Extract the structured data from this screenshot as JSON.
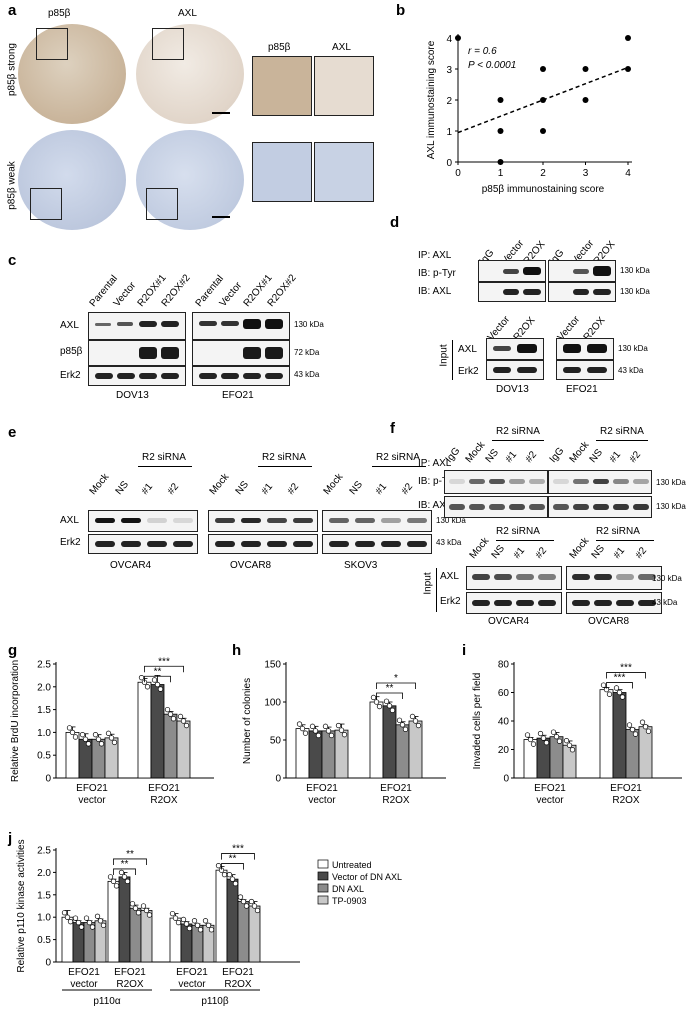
{
  "panels": {
    "a": {
      "letter": "a",
      "col_labels": [
        "p85β",
        "AXL"
      ],
      "inset_labels": [
        "p85β",
        "AXL"
      ],
      "row_labels": [
        "p85β strong",
        "p85β weak"
      ]
    },
    "b": {
      "letter": "b",
      "stats_r": "r = 0.6",
      "stats_p": "P < 0.0001"
    },
    "c": {
      "letter": "c",
      "lanes_left": [
        "Parental",
        "Vector",
        "R2OX#1",
        "R2OX#2"
      ],
      "lanes_right": [
        "Parental",
        "Vector",
        "R2OX#1",
        "R2OX#2"
      ],
      "rows": [
        "AXL",
        "p85β",
        "Erk2"
      ],
      "kda": [
        "130 kDa",
        "72 kDa",
        "43 kDa"
      ],
      "cell_lines": [
        "DOV13",
        "EFO21"
      ]
    },
    "d": {
      "letter": "d",
      "lanes_top": [
        "IgG",
        "Vector",
        "R2OX",
        "IgG",
        "Vector",
        "R2OX"
      ],
      "ip_label": "IP: AXL",
      "ib_labels": [
        "IB: p-Tyr",
        "IB: AXL"
      ],
      "kda_top": [
        "130 kDa",
        "130 kDa"
      ],
      "lanes_input": [
        "Vector",
        "R2OX",
        "Vector",
        "R2OX"
      ],
      "input_label": "Input",
      "input_rows": [
        "AXL",
        "Erk2"
      ],
      "kda_input": [
        "130 kDa",
        "43 kDa"
      ],
      "cell_lines": [
        "DOV13",
        "EFO21"
      ]
    },
    "e": {
      "letter": "e",
      "siRNA_label": "R2 siRNA",
      "lanes": [
        "Mock",
        "NS",
        "#1",
        "#2"
      ],
      "rows": [
        "AXL",
        "Erk2"
      ],
      "kda": [
        "130 kDa",
        "43 kDa"
      ],
      "cell_lines": [
        "OVCAR4",
        "OVCAR8",
        "SKOV3"
      ]
    },
    "f": {
      "letter": "f",
      "siRNA_label": "R2 siRNA",
      "lanes_top": [
        "IgG",
        "Mock",
        "NS",
        "#1",
        "#2"
      ],
      "ip_label": "IP: AXL",
      "ib_labels": [
        "IB: p-Tyr",
        "IB: AXL"
      ],
      "kda_top": [
        "130 kDa",
        "130 kDa"
      ],
      "lanes_input": [
        "Mock",
        "NS",
        "#1",
        "#2"
      ],
      "input_label": "Input",
      "input_rows": [
        "AXL",
        "Erk2"
      ],
      "kda_input": [
        "130 kDa",
        "43 kDa"
      ],
      "cell_lines": [
        "OVCAR4",
        "OVCAR8"
      ]
    },
    "g": {
      "letter": "g"
    },
    "h": {
      "letter": "h"
    },
    "i": {
      "letter": "i"
    },
    "j": {
      "letter": "j"
    }
  },
  "colors": {
    "untreated": "#ffffff",
    "vector_dn_axl": "#4a4a4a",
    "dn_axl": "#8c8c8c",
    "tp0903": "#c8c8c8",
    "stain_brown": "#c9b49a",
    "stain_blue": "#bcc7dd"
  },
  "chart_data": [
    {
      "id": "b",
      "type": "scatter",
      "xlabel": "p85β immunostaining score",
      "ylabel": "AXL immunostaining score",
      "xlim": [
        0,
        4
      ],
      "ylim": [
        0,
        4
      ],
      "xticks": [
        0,
        1,
        2,
        3,
        4
      ],
      "yticks": [
        0,
        1,
        2,
        3,
        4
      ],
      "points": [
        [
          0,
          4
        ],
        [
          1,
          2
        ],
        [
          1,
          1
        ],
        [
          1,
          0
        ],
        [
          2,
          3
        ],
        [
          2,
          2
        ],
        [
          2,
          1
        ],
        [
          3,
          3
        ],
        [
          3,
          2
        ],
        [
          4,
          4
        ],
        [
          4,
          3
        ]
      ],
      "trendline": [
        [
          0,
          0.95
        ],
        [
          4,
          3.05
        ]
      ],
      "grid": false
    },
    {
      "id": "g",
      "type": "bar",
      "ylabel": "Relative BrdU incorporation",
      "ylim": [
        0,
        2.5
      ],
      "yticks": [
        "0",
        "0.5",
        "1.0",
        "1.5",
        "2.0",
        "2.5"
      ],
      "groups": [
        [
          "EFO21",
          "vector"
        ],
        [
          "EFO21",
          "R2OX"
        ]
      ],
      "values": [
        [
          1.0,
          0.85,
          0.85,
          0.88
        ],
        [
          2.1,
          2.05,
          1.4,
          1.25
        ]
      ],
      "errors": [
        [
          0.12,
          0.12,
          0.1,
          0.08
        ],
        [
          0.08,
          0.2,
          0.06,
          0.06
        ]
      ],
      "significance": [
        "***",
        "**"
      ]
    },
    {
      "id": "h",
      "type": "bar",
      "ylabel": "Number of colonies",
      "ylim": [
        0,
        150
      ],
      "yticks": [
        "0",
        "50",
        "100",
        "150"
      ],
      "groups": [
        [
          "EFO21",
          "vector"
        ],
        [
          "EFO21",
          "R2OX"
        ]
      ],
      "values": [
        [
          65,
          62,
          62,
          63
        ],
        [
          100,
          95,
          70,
          75
        ]
      ],
      "errors": [
        [
          5,
          6,
          5,
          8
        ],
        [
          7,
          5,
          4,
          6
        ]
      ],
      "significance": [
        "*",
        "**"
      ]
    },
    {
      "id": "i",
      "type": "bar",
      "ylabel": "Invaded cells per field",
      "ylim": [
        0,
        80
      ],
      "yticks": [
        "0",
        "20",
        "40",
        "60",
        "80"
      ],
      "groups": [
        [
          "EFO21",
          "vector"
        ],
        [
          "EFO21",
          "R2OX"
        ]
      ],
      "values": [
        [
          27,
          28,
          29,
          23
        ],
        [
          62,
          60,
          34,
          36
        ]
      ],
      "errors": [
        [
          1.5,
          2,
          3,
          3
        ],
        [
          1.5,
          2,
          1,
          1
        ]
      ],
      "significance": [
        "***",
        "***"
      ]
    },
    {
      "id": "j",
      "type": "bar",
      "ylabel": "Relative p110 kinase activities",
      "ylim": [
        0,
        2.5
      ],
      "yticks": [
        "0",
        "0.5",
        "1.0",
        "1.5",
        "2.0",
        "2.5"
      ],
      "groups": [
        [
          "EFO21",
          "vector"
        ],
        [
          "EFO21",
          "R2OX"
        ],
        [
          "EFO21",
          "vector"
        ],
        [
          "EFO21",
          "R2OX"
        ]
      ],
      "subgroups": [
        "p110α",
        "p110β"
      ],
      "values": [
        [
          1.0,
          0.88,
          0.88,
          0.92
        ],
        [
          1.8,
          1.9,
          1.2,
          1.15
        ],
        [
          0.98,
          0.85,
          0.82,
          0.82
        ],
        [
          2.05,
          1.85,
          1.35,
          1.25
        ]
      ],
      "errors": [
        [
          0.15,
          0.04,
          0.04,
          0.04
        ],
        [
          0.05,
          0.1,
          0.07,
          0.05
        ],
        [
          0.1,
          0.05,
          0.03,
          0.03
        ],
        [
          0.08,
          0.1,
          0.04,
          0.1
        ]
      ],
      "significance": [
        [
          "**",
          "**"
        ],
        [
          "***",
          "**"
        ]
      ],
      "legend": [
        "Untreated",
        "Vector of DN AXL",
        "DN AXL",
        "TP-0903"
      ],
      "legend_position": "right"
    }
  ]
}
